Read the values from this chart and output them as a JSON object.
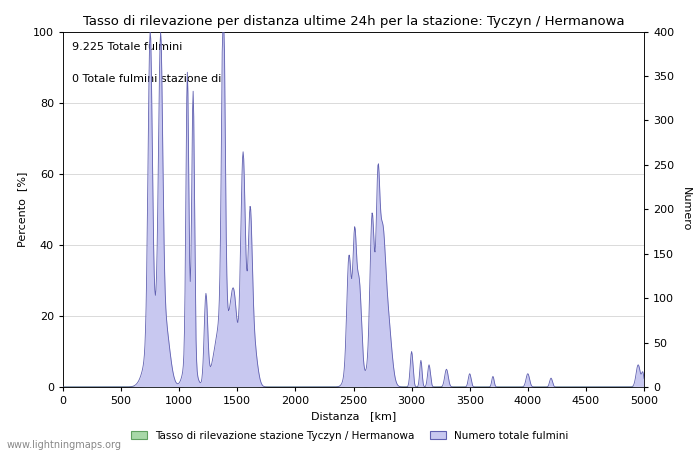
{
  "title": "Tasso di rilevazione per distanza ultime 24h per la stazione: Tyczyn / Hermanowa",
  "xlabel": "Distanza   [km]",
  "ylabel_left": "Percento  [%]",
  "ylabel_right": "Numero",
  "annotation_line1": "9.225 Totale fulmini",
  "annotation_line2": "0 Totale fulmini stazione di",
  "xlim": [
    0,
    5000
  ],
  "ylim_left": [
    0,
    100
  ],
  "ylim_right": [
    0,
    400
  ],
  "xticks": [
    0,
    500,
    1000,
    1500,
    2000,
    2500,
    3000,
    3500,
    4000,
    4500,
    5000
  ],
  "yticks_left": [
    0,
    20,
    40,
    60,
    80,
    100
  ],
  "yticks_right": [
    0,
    50,
    100,
    150,
    200,
    250,
    300,
    350,
    400
  ],
  "legend_label_green": "Tasso di rilevazione stazione Tyczyn / Hermanowa",
  "legend_label_blue": "Numero totale fulmini",
  "watermark": "www.lightningmaps.org",
  "fill_color_blue": "#c8c8f0",
  "line_color_blue": "#6060b0",
  "fill_color_green": "#a8d8a8",
  "line_color_green": "#60a060",
  "background_color": "#ffffff",
  "grid_color": "#cccccc"
}
